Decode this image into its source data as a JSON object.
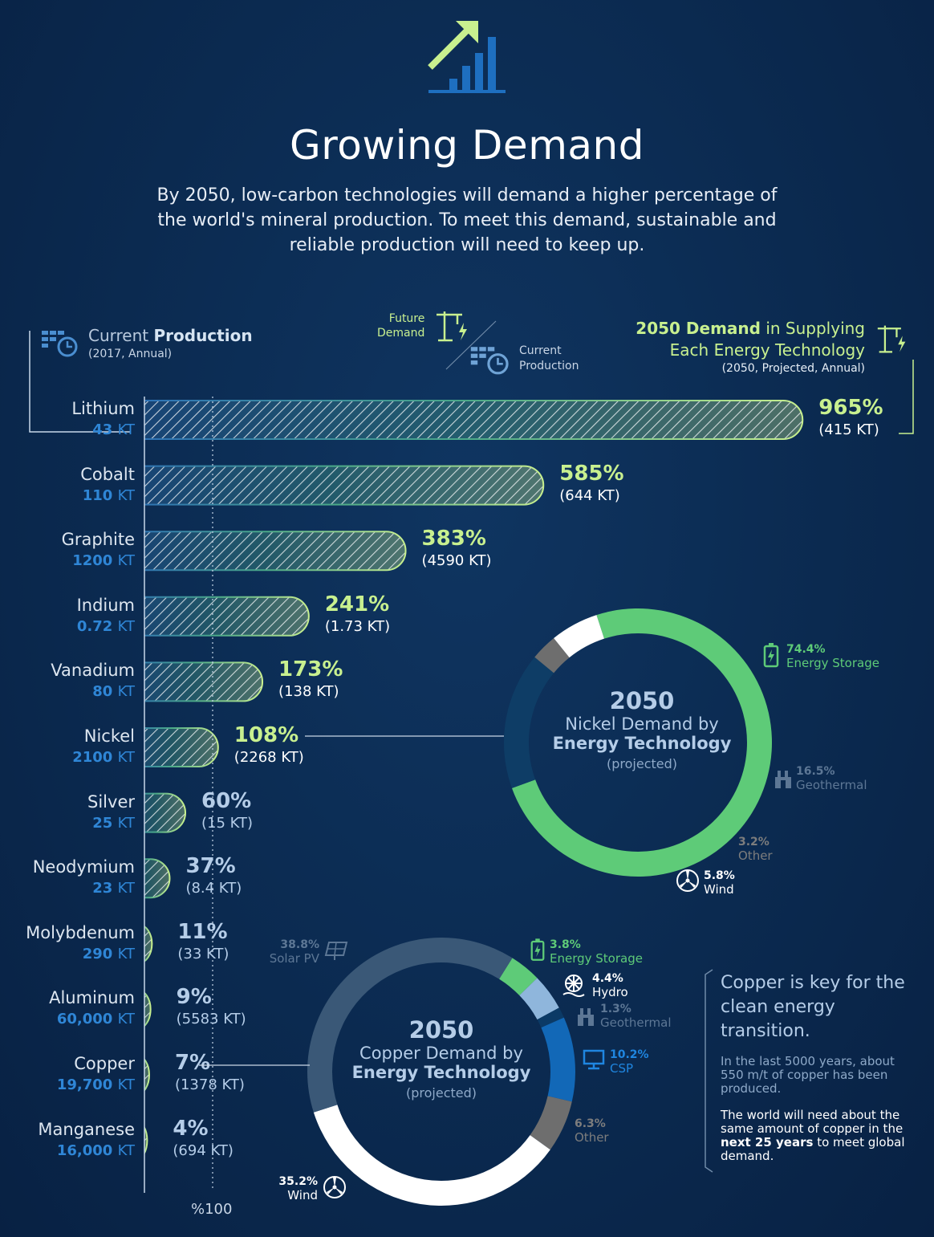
{
  "title": "Growing Demand",
  "subtitle": "By 2050, low-carbon technologies will demand a higher percentage of the world's mineral production. To meet this demand, sustainable and reliable production will need to keep up.",
  "icons": {
    "header": "growth-bar-chart-icon",
    "production": "factory-clock-icon",
    "demand": "crane-lightning-icon"
  },
  "legend": {
    "current_pre": "Current ",
    "current_bold": "Production",
    "current_sub": "(2017, Annual)",
    "ratio_top": "Future\nDemand",
    "ratio_bottom": "Current\nProduction",
    "demand_bold": "2050 Demand",
    "demand_rest": " in Supplying",
    "demand_line2": "Each Energy Technology",
    "demand_sub": "(2050, Projected, Annual)"
  },
  "colors": {
    "background": "#0b2a50",
    "blue": "#2f86d6",
    "green": "#c8f08f",
    "ring_green": "#5ecb78"
  },
  "chart_data": [
    {
      "type": "bar",
      "orientation": "horizontal",
      "categories": [
        "Lithium",
        "Cobalt",
        "Graphite",
        "Indium",
        "Vanadium",
        "Nickel",
        "Silver",
        "Neodymium",
        "Molybdenum",
        "Aluminum",
        "Copper",
        "Manganese"
      ],
      "current_production": [
        "43 KT",
        "110 KT",
        "1200 KT",
        "0.72 KT",
        "80 KT",
        "2100 KT",
        "25 KT",
        "23 KT",
        "290 KT",
        "60,000 KT",
        "19,700 KT",
        "16,000 KT"
      ],
      "current_production_values": [
        43,
        110,
        1200,
        0.72,
        80,
        2100,
        25,
        23,
        290,
        60000,
        19700,
        16000
      ],
      "demand_2050_pct": [
        965,
        585,
        383,
        241,
        173,
        108,
        60,
        37,
        11,
        9,
        7,
        4
      ],
      "pct_labels": [
        "965%",
        "585%",
        "383%",
        "241%",
        "173%",
        "108%",
        "60%",
        "37%",
        "11%",
        "9%",
        "7%",
        "4%"
      ],
      "demand_2050_labels": [
        "(415 KT)",
        "(644 KT)",
        "(4590 KT)",
        "(1.73 KT)",
        "(138 KT)",
        "(2268 KT)",
        "(15 KT)",
        "(8.4 KT)",
        "(33 KT)",
        "(5583 KT)",
        "(1378 KT)",
        "(694 KT)"
      ],
      "reference_line": 100,
      "reference_label": "%100"
    },
    {
      "type": "pie",
      "donut": true,
      "center": {
        "year": "2050",
        "line1": "Nickel Demand by",
        "line2": "Energy Technology",
        "line3": "(projected)"
      },
      "slices": [
        {
          "label": "Energy Storage",
          "value": 74.4,
          "value_label": "74.4%",
          "color": "#5ecb78",
          "icon": "battery-icon"
        },
        {
          "label": "Geothermal",
          "value": 16.5,
          "value_label": "16.5%",
          "color": "#0e3d66",
          "icon": "geothermal-plant-icon"
        },
        {
          "label": "Other",
          "value": 3.2,
          "value_label": "3.2%",
          "color": "#6e6e6e",
          "icon": ""
        },
        {
          "label": "Wind",
          "value": 5.8,
          "value_label": "5.8%",
          "color": "#ffffff",
          "icon": "wind-turbine-icon"
        }
      ]
    },
    {
      "type": "pie",
      "donut": true,
      "center": {
        "year": "2050",
        "line1": "Copper Demand by",
        "line2": "Energy Technology",
        "line3": "(projected)"
      },
      "slices": [
        {
          "label": "Energy Storage",
          "value": 3.8,
          "value_label": "3.8%",
          "color": "#5ecb78",
          "icon": "battery-icon"
        },
        {
          "label": "Hydro",
          "value": 4.4,
          "value_label": "4.4%",
          "color": "#8fb6dc",
          "icon": "hydro-wheel-icon"
        },
        {
          "label": "Geothermal",
          "value": 1.3,
          "value_label": "1.3%",
          "color": "#0b3a66",
          "icon": "geothermal-plant-icon"
        },
        {
          "label": "CSP",
          "value": 10.2,
          "value_label": "10.2%",
          "color": "#1268b7",
          "icon": "csp-panel-icon"
        },
        {
          "label": "Other",
          "value": 6.3,
          "value_label": "6.3%",
          "color": "#6e6e6e",
          "icon": ""
        },
        {
          "label": "Wind",
          "value": 35.2,
          "value_label": "35.2%",
          "color": "#ffffff",
          "icon": "wind-turbine-icon"
        },
        {
          "label": "Solar PV",
          "value": 38.8,
          "value_label": "38.8%",
          "color": "#3a5877",
          "icon": "solar-panel-icon"
        }
      ]
    }
  ],
  "copper_note": {
    "headline": "Copper is key for the clean energy transition.",
    "p1": "In the last 5000 years, about 550 m/t of copper has been produced.",
    "p2_pre": "The world will need about the same amount of copper in the ",
    "p2_bold": "next 25 years",
    "p2_post": " to meet global demand."
  }
}
